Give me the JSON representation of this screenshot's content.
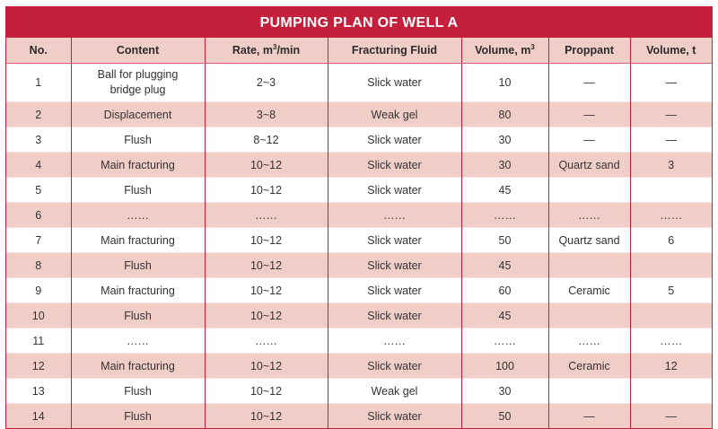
{
  "table": {
    "title": "PUMPING PLAN OF WELL A",
    "headers": [
      {
        "label": "No.",
        "sup": ""
      },
      {
        "label": "Content",
        "sup": ""
      },
      {
        "label": "Rate, m",
        "sup": "3",
        "suffix": "/min"
      },
      {
        "label": "Fracturing Fluid",
        "sup": ""
      },
      {
        "label": "Volume, m",
        "sup": "3",
        "suffix": ""
      },
      {
        "label": "Proppant",
        "sup": ""
      },
      {
        "label": "Volume, t",
        "sup": ""
      }
    ],
    "rows": [
      [
        "1",
        "Ball for plugging bridge plug",
        "2~3",
        "Slick water",
        "10",
        "—",
        "—"
      ],
      [
        "2",
        "Displacement",
        "3~8",
        "Weak gel",
        "80",
        "—",
        "—"
      ],
      [
        "3",
        "Flush",
        "8~12",
        "Slick water",
        "30",
        "—",
        "—"
      ],
      [
        "4",
        "Main fracturing",
        "10~12",
        "Slick water",
        "30",
        "Quartz sand",
        "3"
      ],
      [
        "5",
        "Flush",
        "10~12",
        "Slick water",
        "45",
        "",
        ""
      ],
      [
        "6",
        "……",
        "……",
        "……",
        "……",
        "……",
        "……"
      ],
      [
        "7",
        "Main fracturing",
        "10~12",
        "Slick water",
        "50",
        "Quartz sand",
        "6"
      ],
      [
        "8",
        "Flush",
        "10~12",
        "Slick water",
        "45",
        "",
        ""
      ],
      [
        "9",
        "Main fracturing",
        "10~12",
        "Slick water",
        "60",
        "Ceramic",
        "5"
      ],
      [
        "10",
        "Flush",
        "10~12",
        "Slick water",
        "45",
        "",
        ""
      ],
      [
        "11",
        "……",
        "……",
        "……",
        "……",
        "……",
        "……"
      ],
      [
        "12",
        "Main fracturing",
        "10~12",
        "Slick water",
        "100",
        "Ceramic",
        "12"
      ],
      [
        "13",
        "Flush",
        "10~12",
        "Weak gel",
        "30",
        "",
        ""
      ],
      [
        "14",
        "Flush",
        "10~12",
        "Slick water",
        "50",
        "—",
        "—"
      ]
    ]
  },
  "colors": {
    "title_bg": "#c41f3b",
    "header_bg": "#f1cdc7",
    "stripe_bg": "#f1cdc7",
    "border": "#c8203a"
  }
}
